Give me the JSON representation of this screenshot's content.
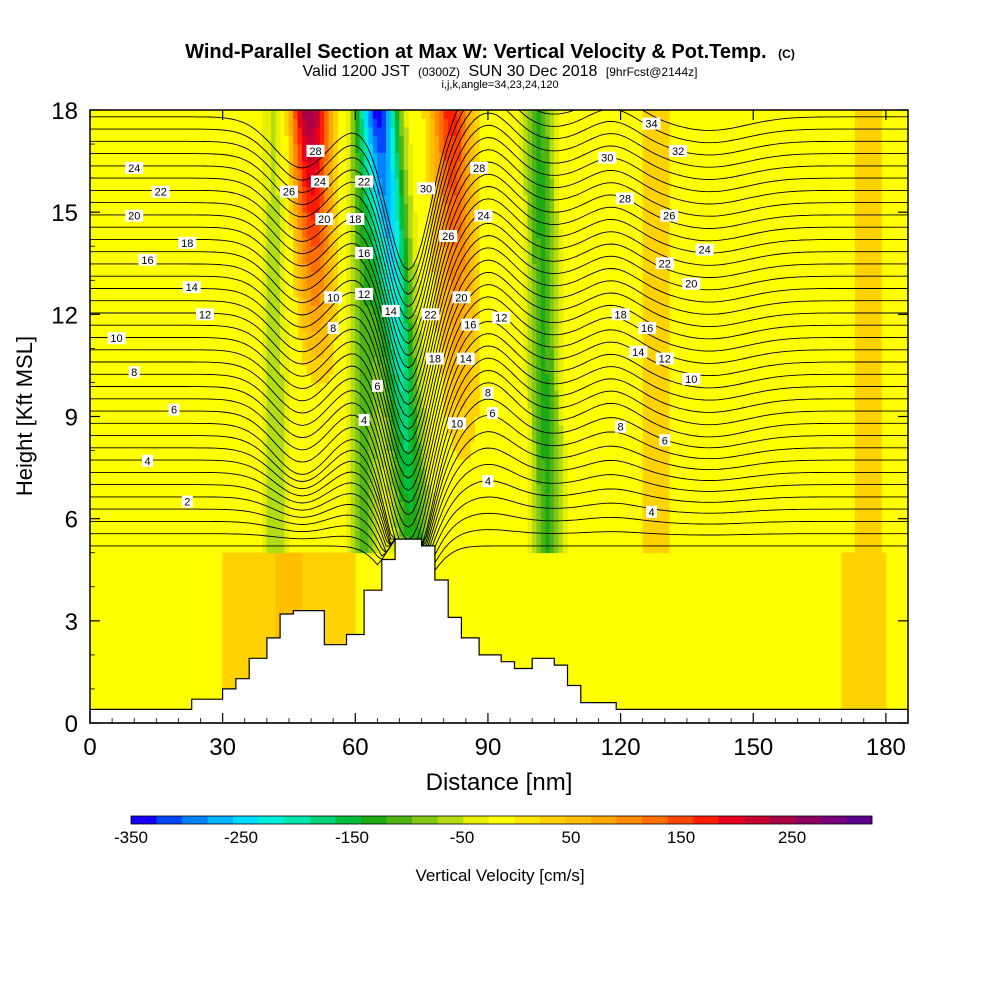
{
  "chart_data": {
    "type": "heatmap",
    "title": "Wind-Parallel Section at Max W: Vertical Velocity & Pot.Temp.",
    "title_mark": "(C)",
    "subtitle_parts": [
      "Valid 1200 JST",
      "(0300Z)",
      "SUN 30 Dec 2018",
      "[9hrFcst@2144z]"
    ],
    "subtitle2": "i,j,k,angle=34,23,24,120",
    "xlabel": "Distance [nm]",
    "ylabel": "Height [Kft MSL]",
    "xlim": [
      0,
      185
    ],
    "ylim": [
      0,
      18
    ],
    "x_ticks": [
      "0",
      "30",
      "60",
      "90",
      "120",
      "150",
      "180"
    ],
    "y_ticks": [
      "0",
      "3",
      "6",
      "9",
      "12",
      "15",
      "18"
    ],
    "colorbar": {
      "label": "Vertical Velocity [cm/s]",
      "tick_labels": [
        "-350",
        "-250",
        "-150",
        "-50",
        "50",
        "150",
        "250"
      ],
      "range": [
        -350,
        330
      ],
      "colors": [
        "#1400ff",
        "#0046ff",
        "#0082ff",
        "#00b4ff",
        "#00dcff",
        "#00f0dc",
        "#00e6aa",
        "#00d278",
        "#00be3c",
        "#1eaa14",
        "#50b414",
        "#82c814",
        "#b4dc14",
        "#e6f000",
        "#ffff00",
        "#ffe600",
        "#ffd200",
        "#ffbe00",
        "#ffaa00",
        "#ff8c00",
        "#ff6e00",
        "#ff4600",
        "#ff1e00",
        "#e6001e",
        "#c80032",
        "#aa0046",
        "#8c0064",
        "#780078",
        "#5a008c"
      ]
    },
    "updrafts_cm_s": [
      {
        "x": 52,
        "peak": 260
      },
      {
        "x": 84,
        "peak": 180
      },
      {
        "x": 128,
        "peak": 60
      },
      {
        "x": 176,
        "peak": 60
      }
    ],
    "downdrafts_cm_s": [
      {
        "x": 71,
        "peak": -300
      },
      {
        "x": 103,
        "peak": -150
      },
      {
        "x": 62,
        "peak": -130
      },
      {
        "x": 42,
        "peak": -70
      }
    ],
    "terrain_kft": {
      "x": [
        0,
        17,
        23,
        30,
        33,
        36,
        40,
        43,
        46,
        53,
        58,
        62,
        66,
        69,
        75,
        78,
        81,
        84,
        88,
        93,
        96,
        100,
        105,
        108,
        111,
        119,
        185
      ],
      "height": [
        0.4,
        0.4,
        0.7,
        1.0,
        1.3,
        1.9,
        2.5,
        3.2,
        3.3,
        2.3,
        2.6,
        3.9,
        4.8,
        5.4,
        5.2,
        4.2,
        3.1,
        2.5,
        2.0,
        1.8,
        1.6,
        1.9,
        1.7,
        1.1,
        0.6,
        0.4,
        0.4
      ]
    },
    "theta_contour_labels": [
      "2",
      "4",
      "6",
      "8",
      "10",
      "12",
      "14",
      "16",
      "18",
      "20",
      "22",
      "24",
      "26",
      "28",
      "30",
      "32",
      "34"
    ],
    "labels_shown": [
      {
        "t": "2",
        "x": 22,
        "y": 6.5
      },
      {
        "t": "4",
        "x": 13,
        "y": 7.7
      },
      {
        "t": "6",
        "x": 19,
        "y": 9.2
      },
      {
        "t": "8",
        "x": 10,
        "y": 10.3
      },
      {
        "t": "10",
        "x": 6,
        "y": 11.3
      },
      {
        "t": "12",
        "x": 26,
        "y": 12.0
      },
      {
        "t": "14",
        "x": 23,
        "y": 12.8
      },
      {
        "t": "16",
        "x": 13,
        "y": 13.6
      },
      {
        "t": "18",
        "x": 22,
        "y": 14.1
      },
      {
        "t": "20",
        "x": 10,
        "y": 14.9
      },
      {
        "t": "22",
        "x": 16,
        "y": 15.6
      },
      {
        "t": "24",
        "x": 10,
        "y": 16.3
      },
      {
        "t": "26",
        "x": 45,
        "y": 15.6
      },
      {
        "t": "28",
        "x": 51,
        "y": 16.8
      },
      {
        "t": "24",
        "x": 52,
        "y": 15.9
      },
      {
        "t": "20",
        "x": 53,
        "y": 14.8
      },
      {
        "t": "10",
        "x": 55,
        "y": 12.5
      },
      {
        "t": "8",
        "x": 55,
        "y": 11.6
      },
      {
        "t": "22",
        "x": 62,
        "y": 15.9
      },
      {
        "t": "18",
        "x": 60,
        "y": 14.8
      },
      {
        "t": "16",
        "x": 62,
        "y": 13.8
      },
      {
        "t": "12",
        "x": 62,
        "y": 12.6
      },
      {
        "t": "14",
        "x": 68,
        "y": 12.1
      },
      {
        "t": "6",
        "x": 65,
        "y": 9.9
      },
      {
        "t": "4",
        "x": 62,
        "y": 8.9
      },
      {
        "t": "30",
        "x": 76,
        "y": 15.7
      },
      {
        "t": "26",
        "x": 81,
        "y": 14.3
      },
      {
        "t": "22",
        "x": 77,
        "y": 12.0
      },
      {
        "t": "18",
        "x": 78,
        "y": 10.7
      },
      {
        "t": "20",
        "x": 84,
        "y": 12.5
      },
      {
        "t": "16",
        "x": 86,
        "y": 11.7
      },
      {
        "t": "14",
        "x": 85,
        "y": 10.7
      },
      {
        "t": "12",
        "x": 93,
        "y": 11.9
      },
      {
        "t": "10",
        "x": 83,
        "y": 8.8
      },
      {
        "t": "8",
        "x": 90,
        "y": 9.7
      },
      {
        "t": "6",
        "x": 91,
        "y": 9.1
      },
      {
        "t": "4",
        "x": 90,
        "y": 7.1
      },
      {
        "t": "28",
        "x": 88,
        "y": 16.3
      },
      {
        "t": "24",
        "x": 89,
        "y": 14.9
      },
      {
        "t": "34",
        "x": 127,
        "y": 17.6
      },
      {
        "t": "32",
        "x": 133,
        "y": 16.8
      },
      {
        "t": "30",
        "x": 117,
        "y": 16.6
      },
      {
        "t": "28",
        "x": 121,
        "y": 15.4
      },
      {
        "t": "26",
        "x": 131,
        "y": 14.9
      },
      {
        "t": "24",
        "x": 139,
        "y": 13.9
      },
      {
        "t": "22",
        "x": 130,
        "y": 13.5
      },
      {
        "t": "20",
        "x": 136,
        "y": 12.9
      },
      {
        "t": "18",
        "x": 120,
        "y": 12.0
      },
      {
        "t": "16",
        "x": 126,
        "y": 11.6
      },
      {
        "t": "14",
        "x": 124,
        "y": 10.9
      },
      {
        "t": "12",
        "x": 130,
        "y": 10.7
      },
      {
        "t": "10",
        "x": 136,
        "y": 10.1
      },
      {
        "t": "8",
        "x": 120,
        "y": 8.7
      },
      {
        "t": "6",
        "x": 130,
        "y": 8.3
      },
      {
        "t": "4",
        "x": 127,
        "y": 6.2
      }
    ],
    "grid": false,
    "legend": "colorbar-bottom"
  }
}
